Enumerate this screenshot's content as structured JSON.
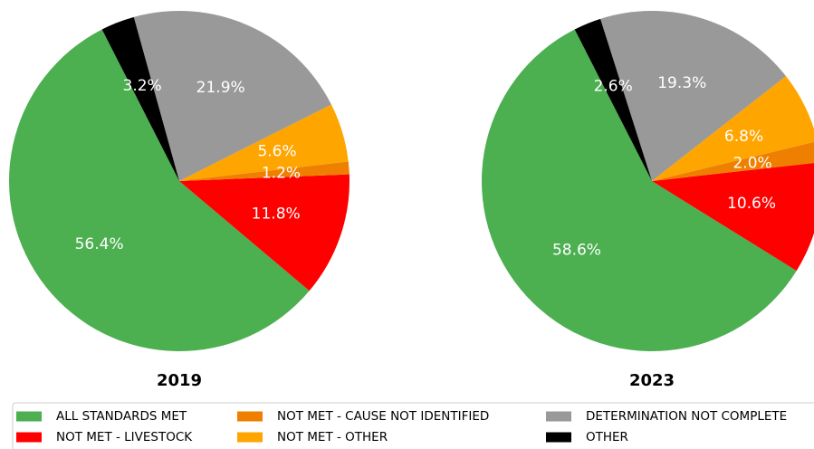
{
  "chart_data": [
    {
      "type": "pie",
      "title": "2019",
      "categories": [
        "ALL STANDARDS MET",
        "NOT MET - LIVESTOCK",
        "NOT MET - CAUSE NOT IDENTIFIED",
        "NOT MET - OTHER",
        "DETERMINATION NOT COMPLETE",
        "OTHER"
      ],
      "values": [
        56.4,
        11.8,
        1.2,
        5.6,
        21.9,
        3.2
      ],
      "value_labels": [
        "56.4%",
        "11.8%",
        "1.2%",
        "5.6%",
        "21.9%",
        "3.2%"
      ],
      "colors": [
        "#4caf50",
        "#ff0000",
        "#ef7f00",
        "#ffa500",
        "#999999",
        "#000000"
      ]
    },
    {
      "type": "pie",
      "title": "2023",
      "categories": [
        "ALL STANDARDS MET",
        "NOT MET - LIVESTOCK",
        "NOT MET - CAUSE NOT IDENTIFIED",
        "NOT MET - OTHER",
        "DETERMINATION NOT COMPLETE",
        "OTHER"
      ],
      "values": [
        58.6,
        10.6,
        2.0,
        6.8,
        19.3,
        2.6
      ],
      "value_labels": [
        "58.6%",
        "10.6%",
        "2.0%",
        "6.8%",
        "19.3%",
        "2.6%"
      ],
      "colors": [
        "#4caf50",
        "#ff0000",
        "#ef7f00",
        "#ffa500",
        "#999999",
        "#000000"
      ]
    }
  ]
}
